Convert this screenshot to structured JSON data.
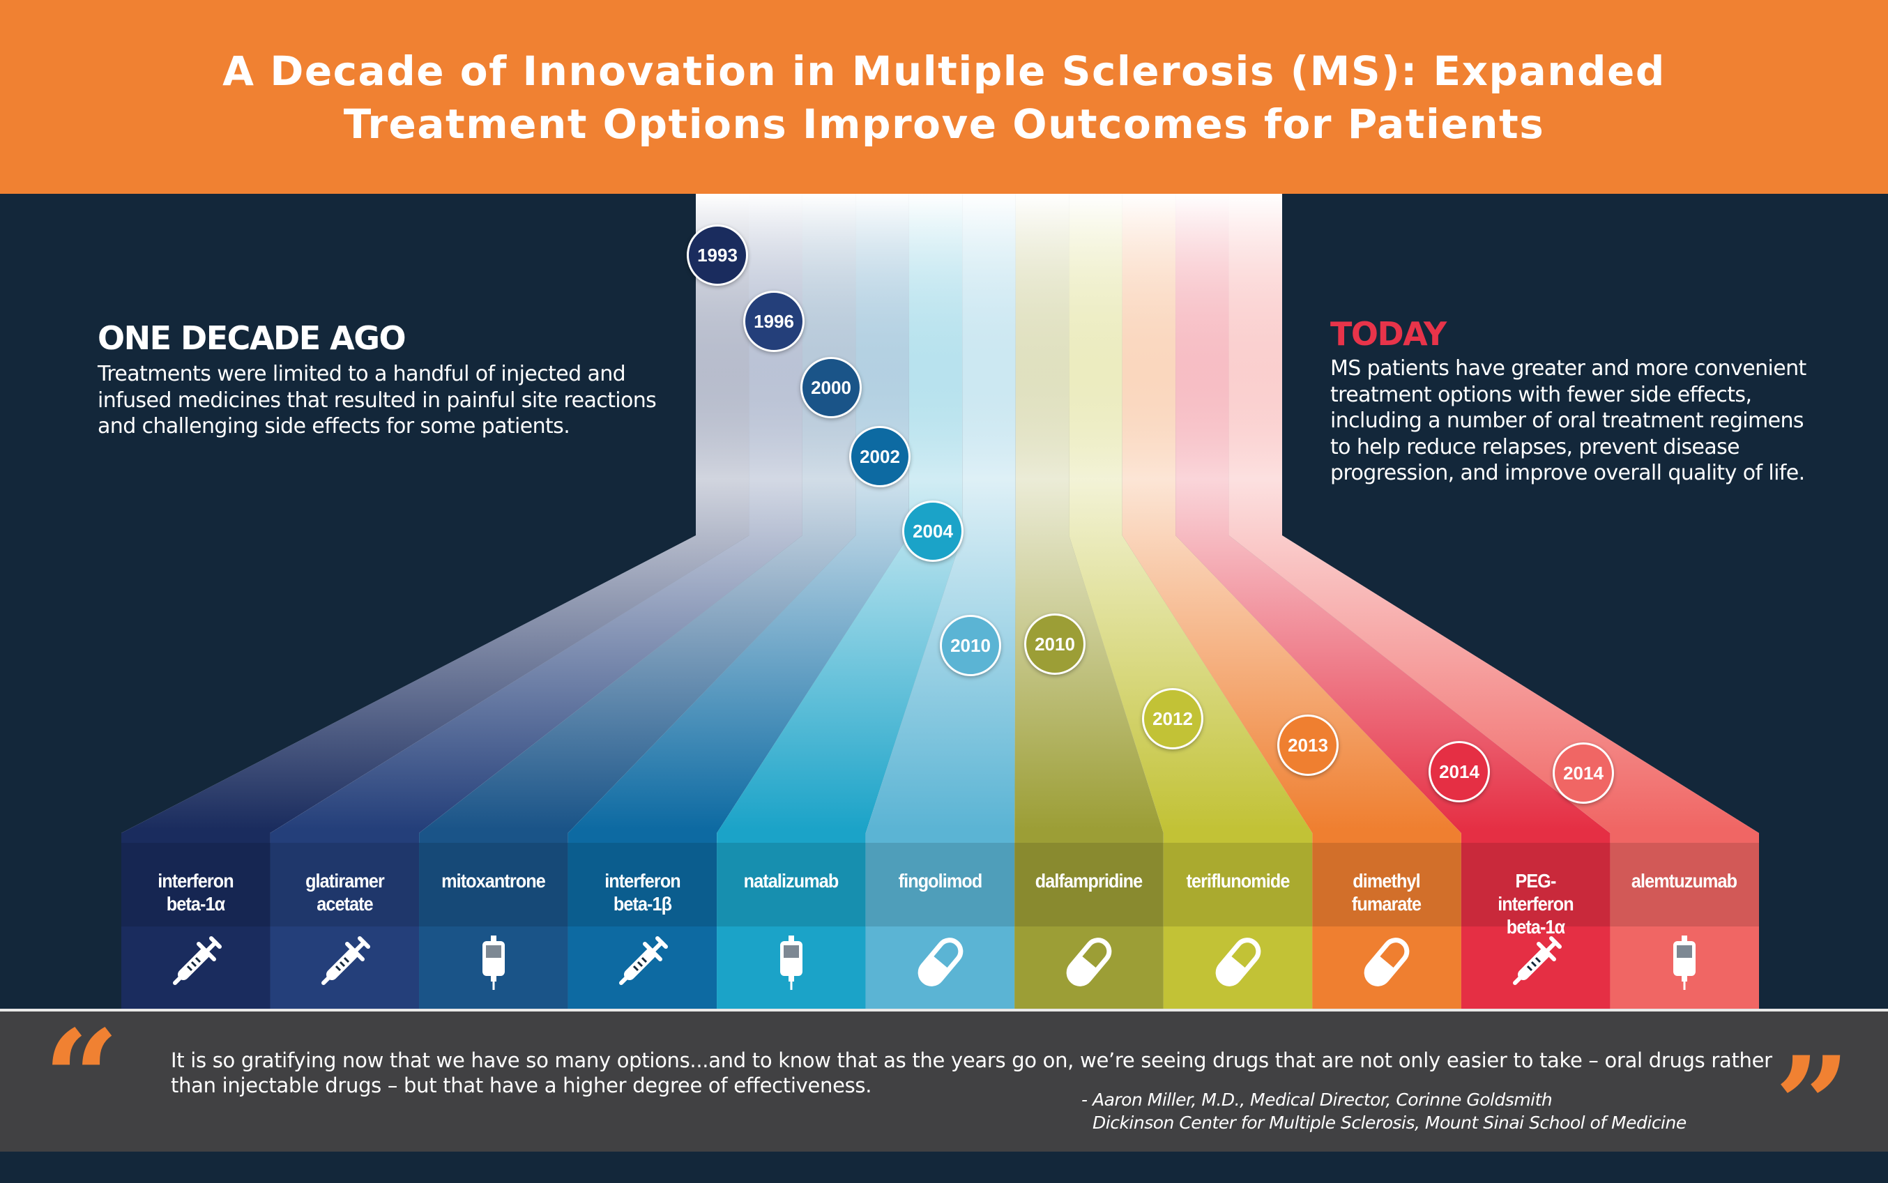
{
  "header": {
    "title_line1": "A Decade of Innovation in Multiple Sclerosis (MS): Expanded",
    "title_line2": "Treatment Options Improve Outcomes for Patients",
    "color": "#f08132"
  },
  "left": {
    "heading": "ONE DECADE AGO",
    "lines": [
      "Treatments were limited to a handful of injected and",
      "infused medicines that resulted in painful site reactions",
      "and challenging side effects for some patients."
    ]
  },
  "right": {
    "heading": "TODAY",
    "heading_color": "#e8344a",
    "lines": [
      "MS patients have greater and more convenient",
      "treatment options with fewer side effects,",
      "including a number of oral treatment regimens",
      "to help reduce relapses, prevent disease",
      "progression, and improve overall quality of life."
    ]
  },
  "treatments": [
    {
      "name": "interferon beta-1α",
      "lines": [
        "interferon",
        "beta-1α"
      ],
      "year": "1993",
      "icon": "syringe-icon",
      "color": "#1a2c5e"
    },
    {
      "name": "glatiramer acetate",
      "lines": [
        "glatiramer",
        "acetate"
      ],
      "year": "1996",
      "icon": "syringe-icon",
      "color": "#243f7a"
    },
    {
      "name": "mitoxantrone",
      "lines": [
        "mitoxantrone"
      ],
      "year": "2000",
      "icon": "iv-bag-icon",
      "color": "#1a5488"
    },
    {
      "name": "interferon beta-1β",
      "lines": [
        "interferon",
        "beta-1β"
      ],
      "year": "2002",
      "icon": "syringe-icon",
      "color": "#0d6aa2"
    },
    {
      "name": "natalizumab",
      "lines": [
        "natalizumab"
      ],
      "year": "2004",
      "icon": "iv-bag-icon",
      "color": "#1ba3c8"
    },
    {
      "name": "fingolimod",
      "lines": [
        "fingolimod"
      ],
      "year": "2010",
      "icon": "pill-icon",
      "color": "#5bb4d4"
    },
    {
      "name": "dalfampridine",
      "lines": [
        "dalfampridine"
      ],
      "year": "2010",
      "icon": "pill-icon",
      "color": "#9c9e36"
    },
    {
      "name": "teriflunomide",
      "lines": [
        "teriflunomide"
      ],
      "year": "2012",
      "icon": "pill-icon",
      "color": "#c2c236"
    },
    {
      "name": "dimethyl fumarate",
      "lines": [
        "dimethyl",
        "fumarate"
      ],
      "year": "2013",
      "icon": "pill-icon",
      "color": "#ef7f30"
    },
    {
      "name": "PEG-interferon beta-1α",
      "lines": [
        "PEG-",
        "interferon",
        "beta-1α"
      ],
      "year": "2014",
      "icon": "syringe-icon",
      "color": "#e52f44"
    },
    {
      "name": "alemtuzumab",
      "lines": [
        "alemtuzumab"
      ],
      "year": "2014",
      "icon": "iv-bag-icon",
      "color": "#f06664"
    }
  ],
  "footer": {
    "open_quote": "“",
    "close_quote": "”",
    "quote_lines": [
      "It is so gratifying now that we have so many options...and to know that as the years go on, we’re seeing drugs that are not only easier to take – oral drugs rather",
      "than injectable drugs – but that have a higher degree of effectiveness."
    ],
    "attribution_lines": [
      "- Aaron Miller, M.D., Medical Director, Corinne Goldsmith",
      "Dickinson Center for Multiple Sclerosis, Mount Sinai School of Medicine"
    ],
    "accent_color": "#f08132"
  }
}
